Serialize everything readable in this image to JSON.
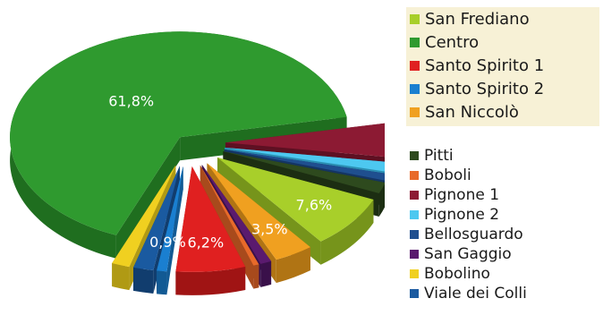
{
  "chart_data": {
    "type": "pie",
    "variant": "3d-exploded",
    "slices": [
      {
        "name": "Centro",
        "value": 61.8,
        "label": "61,8%",
        "color": "#2f9a2f",
        "side": "#1f6e1f"
      },
      {
        "name": "Pignone 1",
        "value": 5.0,
        "label": "",
        "color": "#8c1a33",
        "side": "#5e1022"
      },
      {
        "name": "Pignone 2",
        "value": 1.4,
        "label": "",
        "color": "#4dc8f0",
        "side": "#2b8fb2"
      },
      {
        "name": "Bellosguardo",
        "value": 1.0,
        "label": "",
        "color": "#1f4f8f",
        "side": "#143563"
      },
      {
        "name": "Pitti",
        "value": 1.6,
        "label": "",
        "color": "#2e4a1e",
        "side": "#1c2e12"
      },
      {
        "name": "San Frediano",
        "value": 7.6,
        "label": "7,6%",
        "color": "#a8cf2a",
        "side": "#76941b"
      },
      {
        "name": "San Niccolò",
        "value": 3.5,
        "label": "3,5%",
        "color": "#f0a020",
        "side": "#b07414"
      },
      {
        "name": "San Gaggio",
        "value": 1.0,
        "label": "",
        "color": "#5a1a6e",
        "side": "#3a104a"
      },
      {
        "name": "Boboli",
        "value": 0.5,
        "label": "",
        "color": "#e86a2a",
        "side": "#a84a1c"
      },
      {
        "name": "Santo Spirito 1",
        "value": 6.2,
        "label": "6,2%",
        "color": "#e02020",
        "side": "#a01414"
      },
      {
        "name": "Santo Spirito 2",
        "value": 0.9,
        "label": "0,9%",
        "color": "#1a7fd0",
        "side": "#125a94"
      },
      {
        "name": "Viale dei Colli",
        "value": 1.8,
        "label": "",
        "color": "#1a5aa0",
        "side": "#113d6e"
      },
      {
        "name": "Bobolino",
        "value": 1.6,
        "label": "",
        "color": "#f0d020",
        "side": "#b09a14"
      }
    ]
  },
  "legend_top": [
    {
      "label": "San Frediano",
      "color": "#a8cf2a"
    },
    {
      "label": "Centro",
      "color": "#2f9a2f"
    },
    {
      "label": "Santo Spirito 1",
      "color": "#e02020"
    },
    {
      "label": "Santo Spirito 2",
      "color": "#1a7fd0"
    },
    {
      "label": "San Niccolò",
      "color": "#f0a020"
    }
  ],
  "legend_bottom": [
    {
      "label": "Pitti",
      "color": "#2e4a1e"
    },
    {
      "label": "Boboli",
      "color": "#e86a2a"
    },
    {
      "label": "Pignone 1",
      "color": "#8c1a33"
    },
    {
      "label": "Pignone 2",
      "color": "#4dc8f0"
    },
    {
      "label": "Bellosguardo",
      "color": "#1f4f8f"
    },
    {
      "label": "San Gaggio",
      "color": "#5a1a6e"
    },
    {
      "label": "Bobolino",
      "color": "#f0d020"
    },
    {
      "label": "Viale dei Colli",
      "color": "#1a5aa0"
    }
  ]
}
